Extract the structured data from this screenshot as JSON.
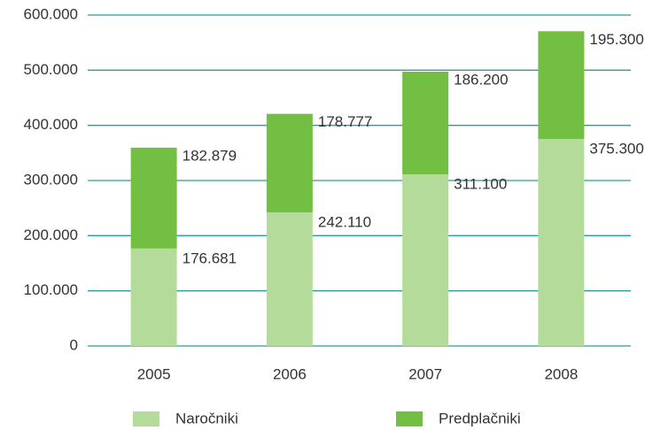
{
  "chart_data": {
    "type": "stacked_bar",
    "categories": [
      "2005",
      "2006",
      "2007",
      "2008"
    ],
    "series": [
      {
        "name": "Naročniki",
        "color": "#b5db9b",
        "values": [
          176681,
          242110,
          311100,
          375300
        ],
        "value_labels": [
          "176.681",
          "242.110",
          "311.100",
          "375.300"
        ]
      },
      {
        "name": "Predplačniki",
        "color": "#72bf44",
        "values": [
          182879,
          178777,
          186200,
          195300
        ],
        "value_labels": [
          "182.879",
          "178.777",
          "186.200",
          "195.300"
        ]
      }
    ],
    "ylim": [
      0,
      600000
    ],
    "yticks": [
      0,
      {
        "value": 100000,
        "label": "100.000"
      },
      {
        "value": 200000,
        "label": "200.000"
      },
      {
        "value": 300000,
        "label": "300.000"
      },
      {
        "value": 400000,
        "label": "400.000"
      },
      {
        "value": 500000,
        "label": "500.000"
      },
      {
        "value": 600000,
        "label": "600.000"
      }
    ],
    "grid": true
  }
}
